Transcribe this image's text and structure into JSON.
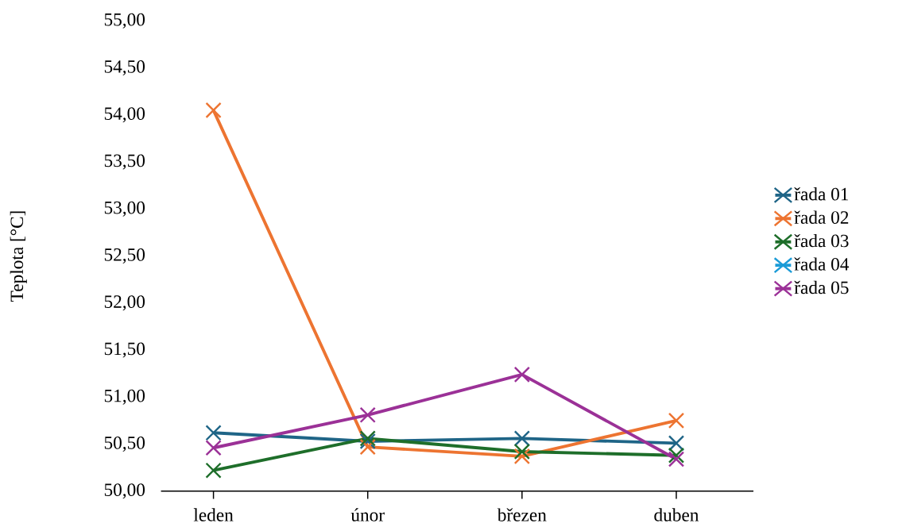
{
  "chart_data": {
    "type": "line",
    "ylabel": "Teplota [°C]",
    "categories": [
      "leden",
      "únor",
      "březen",
      "duben"
    ],
    "series": [
      {
        "name": "řada 01",
        "color": "#1f6587",
        "values": [
          50.62,
          50.53,
          50.56,
          50.51
        ]
      },
      {
        "name": "řada 02",
        "color": "#ed7431",
        "values": [
          54.05,
          50.47,
          50.37,
          50.75
        ]
      },
      {
        "name": "řada 03",
        "color": "#1e6e2a",
        "values": [
          50.22,
          50.56,
          50.42,
          50.38
        ]
      },
      {
        "name": "řada 04",
        "color": "#1b9bd7",
        "values": [
          null,
          null,
          null,
          null
        ]
      },
      {
        "name": "řada 05",
        "color": "#9b3197",
        "values": [
          50.46,
          50.81,
          51.24,
          50.34
        ]
      }
    ],
    "ylim": [
      50,
      55
    ],
    "yticks": [
      {
        "value": 50,
        "label": "50,00"
      },
      {
        "value": 50.5,
        "label": "50,50"
      },
      {
        "value": 51,
        "label": "51,00"
      },
      {
        "value": 51.5,
        "label": "51,50"
      },
      {
        "value": 52,
        "label": "52,00"
      },
      {
        "value": 52.5,
        "label": "52,50"
      },
      {
        "value": 53,
        "label": "53,00"
      },
      {
        "value": 53.5,
        "label": "53,50"
      },
      {
        "value": 54,
        "label": "54,00"
      },
      {
        "value": 54.5,
        "label": "54,50"
      },
      {
        "value": 55,
        "label": "55,00"
      }
    ],
    "grid": false,
    "legend": "right",
    "marker": "cross",
    "line_style": "solid"
  }
}
